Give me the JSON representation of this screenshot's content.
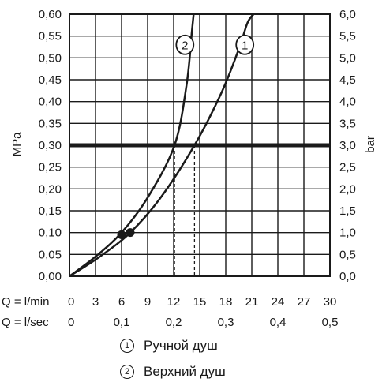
{
  "chart_data": {
    "type": "line",
    "xlabel_rows": [
      {
        "label": "Q = l/min",
        "ticks": [
          "0",
          "3",
          "6",
          "9",
          "12",
          "15",
          "18",
          "21",
          "24",
          "27",
          "30"
        ]
      },
      {
        "label": "Q = l/sec",
        "ticks": [
          "0",
          "0,1",
          "0,2",
          "0,3",
          "0,4",
          "0,5"
        ]
      }
    ],
    "xlim": [
      0,
      30
    ],
    "ylabel_left": "MPa",
    "ylabel_right": "bar",
    "ylim": [
      0,
      0.6
    ],
    "yticks_left": [
      "0,00",
      "0,05",
      "0,10",
      "0,15",
      "0,20",
      "0,25",
      "0,30",
      "0,35",
      "0,40",
      "0,45",
      "0,50",
      "0,55",
      "0,60"
    ],
    "yticks_right": [
      "0,0",
      "0,5",
      "1,0",
      "1,5",
      "2,0",
      "2,5",
      "3,0",
      "3,5",
      "4,0",
      "4,5",
      "5,0",
      "5,5",
      "6,0"
    ],
    "grid": true,
    "reference_line": {
      "y": 0.3
    },
    "series": [
      {
        "name": "1",
        "x": [
          0,
          3.5,
          7,
          10.5,
          14.4,
          17.5,
          19.5,
          20.5,
          21.2
        ],
        "y": [
          0,
          0.045,
          0.1,
          0.18,
          0.3,
          0.42,
          0.52,
          0.58,
          0.6
        ]
      },
      {
        "name": "2",
        "x": [
          0,
          3,
          6,
          9,
          12.1,
          13.5,
          14.1,
          14.3
        ],
        "y": [
          0,
          0.045,
          0.1,
          0.18,
          0.3,
          0.44,
          0.56,
          0.6
        ]
      }
    ],
    "markers": [
      {
        "series": "1",
        "x": 7,
        "y": 0.1
      },
      {
        "series": "2",
        "x": 6,
        "y": 0.095
      }
    ],
    "dashed_drops": [
      {
        "series": "2",
        "x": 12.1,
        "y": 0.3
      },
      {
        "series": "1",
        "x": 14.4,
        "y": 0.3
      }
    ],
    "curve_labels": [
      {
        "text": "1",
        "x": 20.2,
        "y": 0.53
      },
      {
        "text": "2",
        "x": 13.3,
        "y": 0.53
      }
    ]
  },
  "legend": {
    "items": [
      {
        "number": "1",
        "label": "Ручной душ"
      },
      {
        "number": "2",
        "label": "Верхний душ"
      }
    ]
  }
}
